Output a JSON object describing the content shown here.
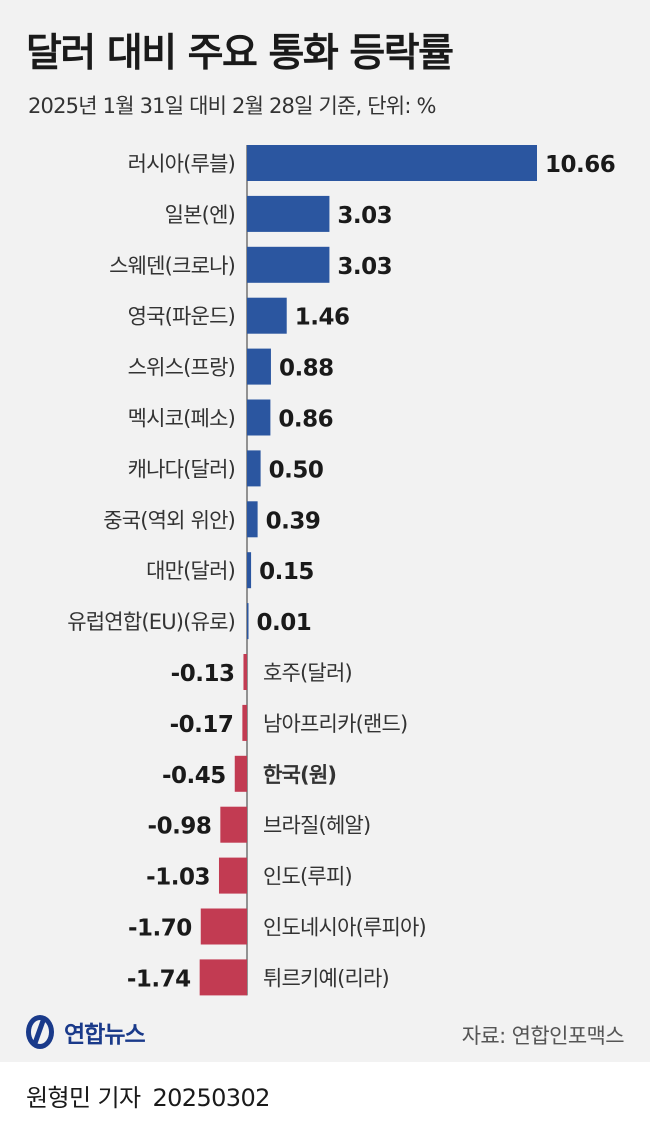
{
  "header": {
    "title": "달러 대비 주요 통화 등락률",
    "subtitle": "2025년 1월 31일 대비 2월 28일 기준, 단위: %"
  },
  "colors": {
    "positive": "#2b56a0",
    "negative": "#c23b52",
    "axis": "#333333"
  },
  "chart_data": {
    "type": "bar",
    "orientation": "horizontal",
    "categories": [
      "러시아(루블)",
      "일본(엔)",
      "스웨덴(크로나)",
      "영국(파운드)",
      "스위스(프랑)",
      "멕시코(페소)",
      "캐나다(달러)",
      "중국(역외 위안)",
      "대만(달러)",
      "유럽연합(EU)(유로)",
      "호주(달러)",
      "남아프리카(랜드)",
      "한국(원)",
      "브라질(헤알)",
      "인도(루피)",
      "인도네시아(루피아)",
      "튀르키예(리라)"
    ],
    "values": [
      10.66,
      3.03,
      3.03,
      1.46,
      0.88,
      0.86,
      0.5,
      0.39,
      0.15,
      0.01,
      -0.13,
      -0.17,
      -0.45,
      -0.98,
      -1.03,
      -1.7,
      -1.74
    ],
    "value_labels": [
      "10.66",
      "3.03",
      "3.03",
      "1.46",
      "0.88",
      "0.86",
      "0.50",
      "0.39",
      "0.15",
      "0.01",
      "-0.13",
      "-0.17",
      "-0.45",
      "-0.98",
      "-1.03",
      "-1.70",
      "-1.74"
    ],
    "highlight": "한국(원)",
    "xlim": [
      -1.74,
      10.66
    ],
    "grid": false,
    "legend": "none"
  },
  "footer": {
    "logo_text": "연합뉴스",
    "source": "자료: 연합인포맥스",
    "byline": "원형민 기자",
    "date": "20250302"
  }
}
